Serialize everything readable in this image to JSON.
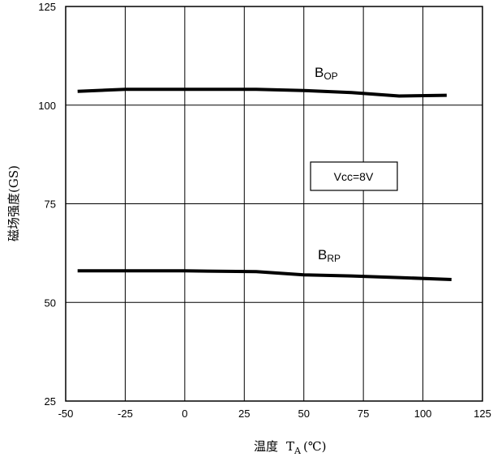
{
  "chart_data": {
    "type": "line",
    "xlabel": "温度",
    "xlabel_symbol": "T",
    "xlabel_subscript": "A",
    "xlabel_unit": "(℃)",
    "ylabel": "磁场强度(GS)",
    "xlim": [
      -50,
      125
    ],
    "ylim": [
      25,
      125
    ],
    "xticks": [
      -50,
      -25,
      0,
      25,
      50,
      75,
      100,
      125
    ],
    "yticks": [
      25,
      50,
      75,
      100,
      125
    ],
    "grid": true,
    "series": [
      {
        "name": "B",
        "name_sub": "OP",
        "x": [
          -45,
          -25,
          0,
          30,
          50,
          70,
          90,
          110
        ],
        "y": [
          103.5,
          104,
          104,
          104,
          103.7,
          103.2,
          102.3,
          102.5
        ]
      },
      {
        "name": "B",
        "name_sub": "RP",
        "x": [
          -45,
          -25,
          0,
          30,
          50,
          70,
          90,
          112
        ],
        "y": [
          58,
          58,
          58,
          57.8,
          57,
          56.7,
          56.3,
          55.8
        ]
      }
    ],
    "annotation": "Vcc=8V"
  }
}
